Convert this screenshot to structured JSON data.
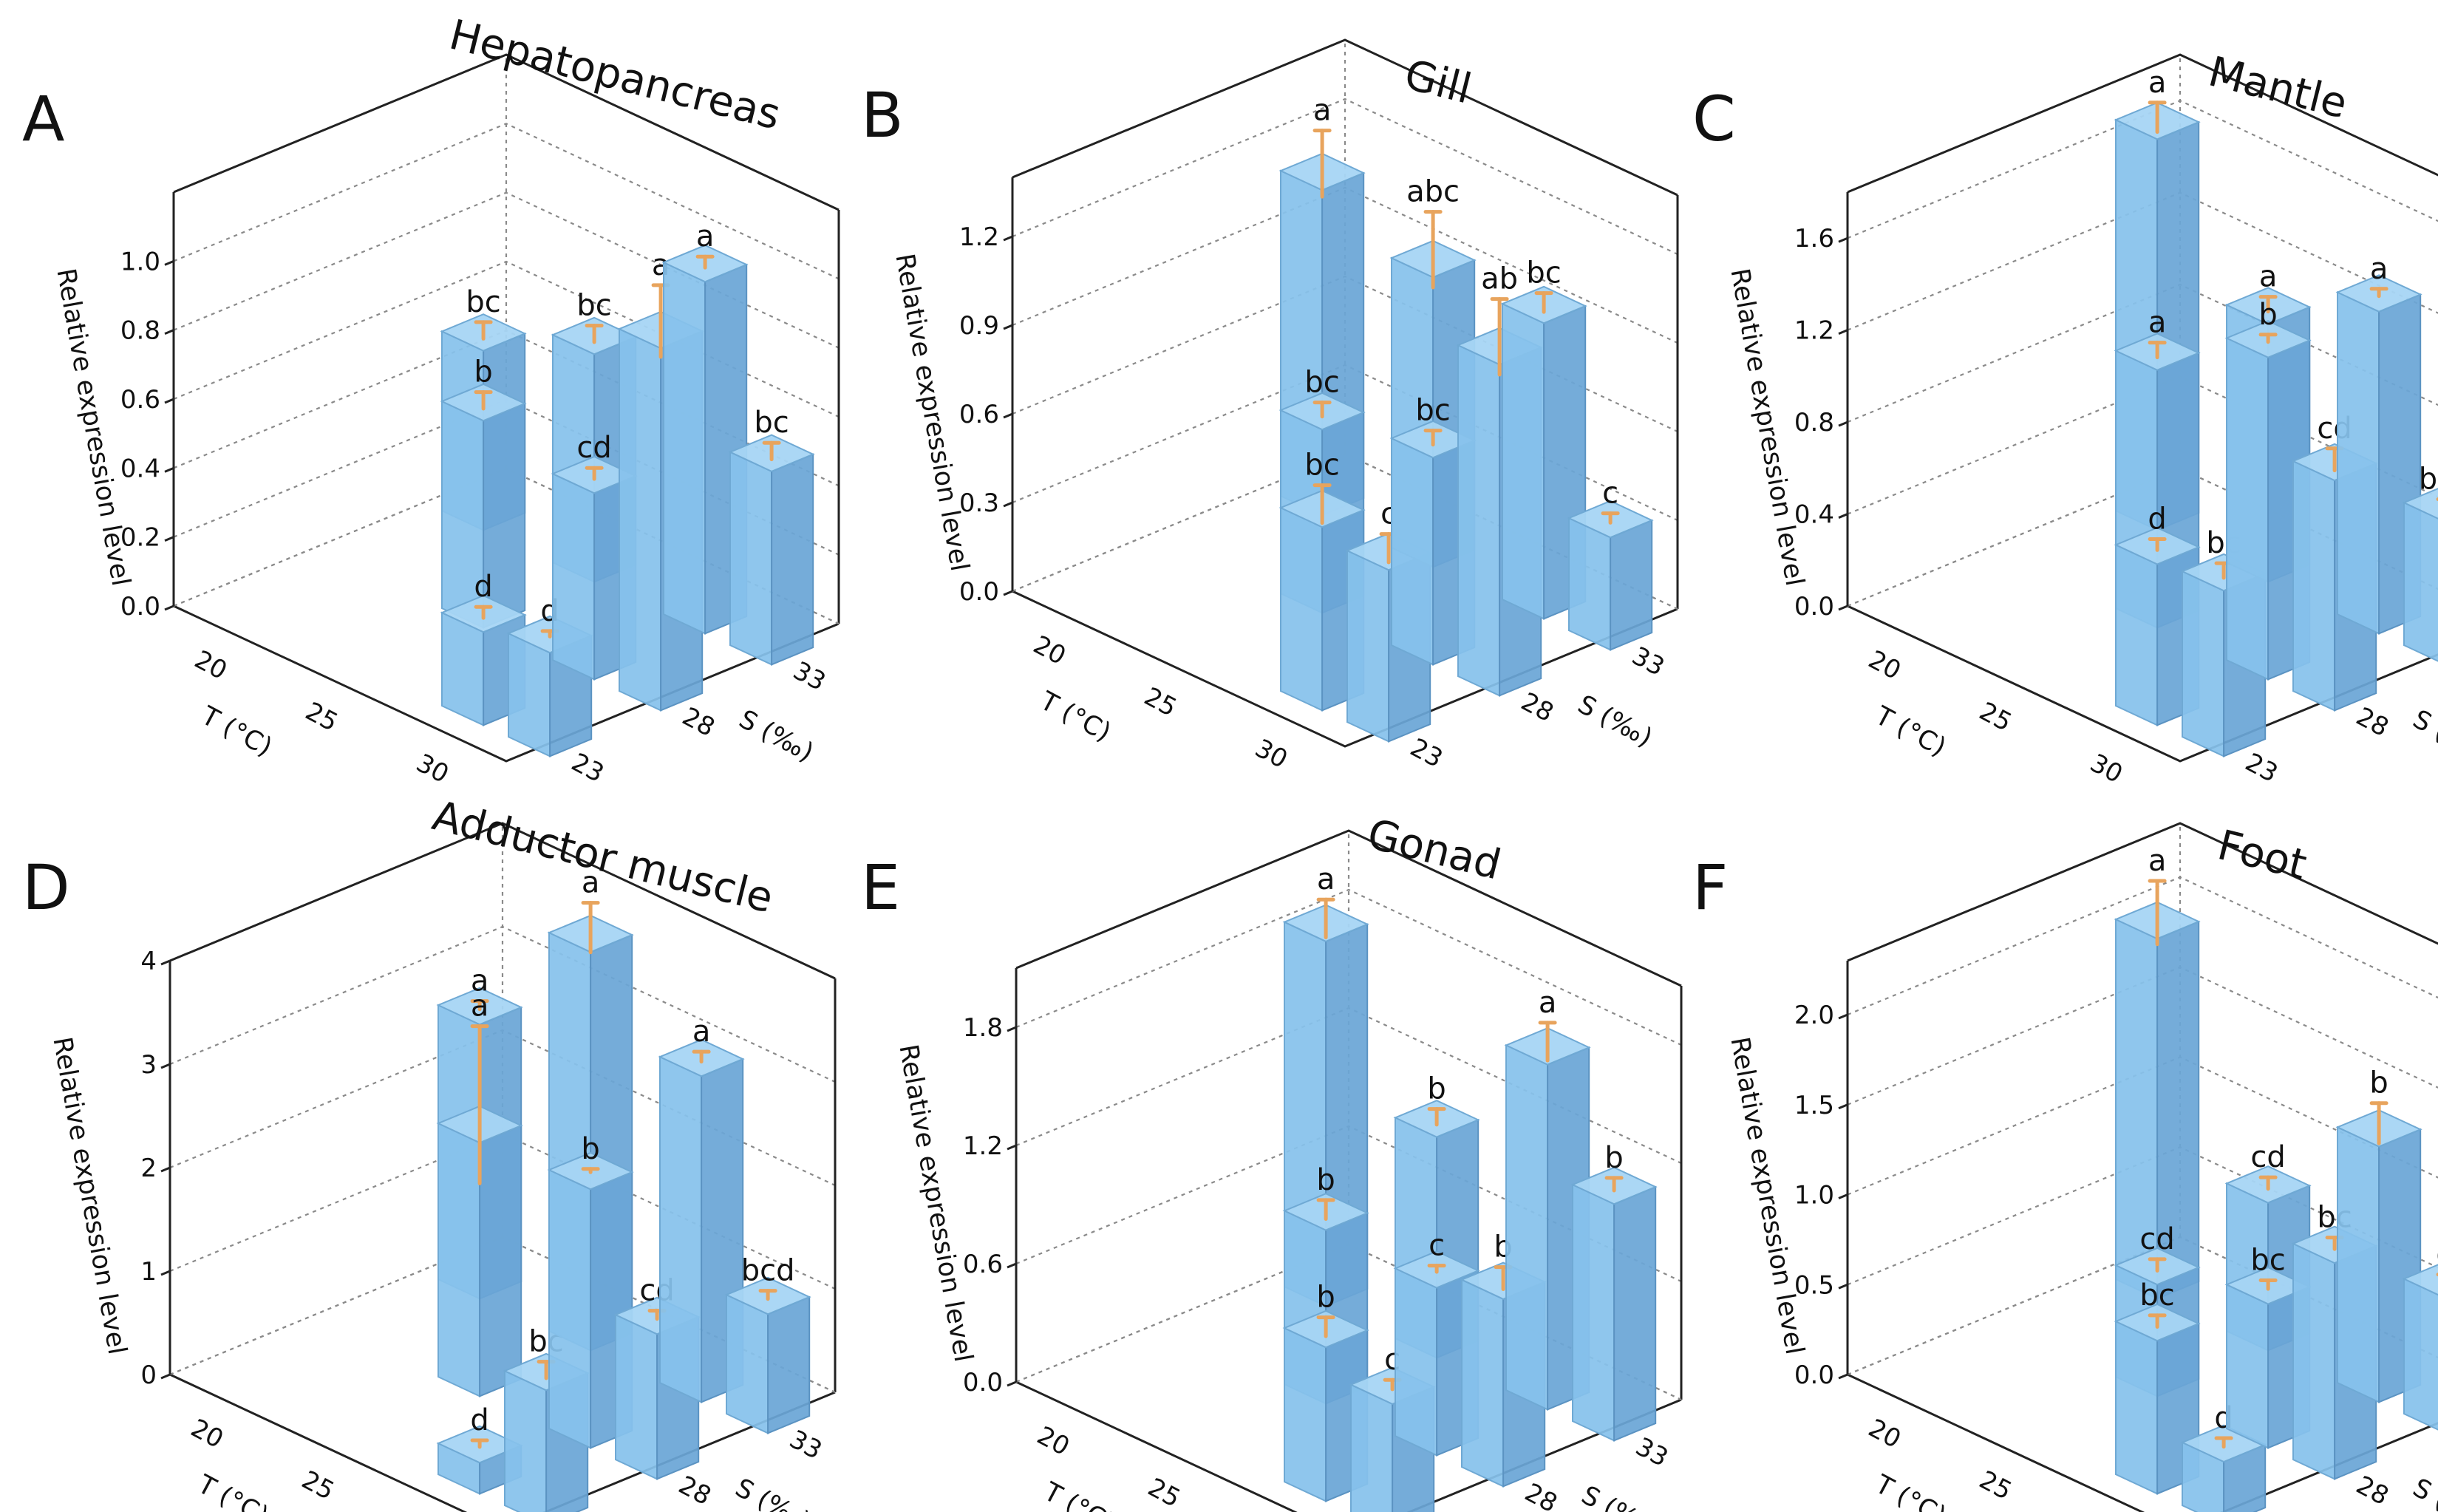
{
  "figure": {
    "panel_count": 6
  },
  "chart_data": [
    {
      "type": "bar3d",
      "panel": "A",
      "title": "Hepatopancreas",
      "ylabel": "Relative expression level",
      "xlabel": "T (°C)",
      "zlabel": "S (‰)",
      "x_categories": [
        "20",
        "25",
        "30"
      ],
      "z_categories": [
        "23",
        "28",
        "33"
      ],
      "ylim": [
        0,
        1.2
      ],
      "yticks": [
        0.0,
        0.2,
        0.4,
        0.6,
        0.8,
        1.0
      ],
      "ytick_labels": [
        "0.0",
        "0.2",
        "0.4",
        "0.6",
        "0.8",
        "1.0"
      ],
      "bars": [
        {
          "T": "20",
          "S": "33",
          "value": 0.52,
          "error": 0.03,
          "label": "bc"
        },
        {
          "T": "25",
          "S": "28",
          "value": 0.6,
          "error": 0.03,
          "label": "b"
        },
        {
          "T": "25",
          "S": "33",
          "value": 0.66,
          "error": 0.03,
          "label": "bc"
        },
        {
          "T": "30",
          "S": "23",
          "value": 0.27,
          "error": 0.02,
          "label": "d"
        },
        {
          "T": "30",
          "S": "28",
          "value": 0.54,
          "error": 0.02,
          "label": "cd"
        },
        {
          "T": "30",
          "S": "33",
          "value": 1.02,
          "error": 0.02,
          "label": "a"
        },
        {
          "T": "35",
          "S": "23",
          "value": 0.3,
          "error": 0.01,
          "label": "d"
        },
        {
          "T": "35",
          "S": "28",
          "value": 1.05,
          "error": 0.13,
          "label": "a"
        },
        {
          "T": "35",
          "S": "33",
          "value": 0.56,
          "error": 0.03,
          "label": "bc"
        }
      ]
    },
    {
      "type": "bar3d",
      "panel": "B",
      "title": "Gill",
      "ylabel": "Relative expression level",
      "xlabel": "T (°C)",
      "zlabel": "S (‰)",
      "x_categories": [
        "20",
        "25",
        "30"
      ],
      "z_categories": [
        "23",
        "28",
        "33"
      ],
      "ylim": [
        0,
        1.4
      ],
      "yticks": [
        0.0,
        0.3,
        0.6,
        0.9,
        1.2
      ],
      "ytick_labels": [
        "0.0",
        "0.3",
        "0.6",
        "0.9",
        "1.2"
      ],
      "bars": [
        {
          "T": "20",
          "S": "33",
          "value": 1.1,
          "error": 0.14,
          "label": "a"
        },
        {
          "T": "25",
          "S": "28",
          "value": 0.62,
          "error": 0.03,
          "label": "bc"
        },
        {
          "T": "25",
          "S": "33",
          "value": 0.98,
          "error": 0.16,
          "label": "abc"
        },
        {
          "T": "30",
          "S": "23",
          "value": 0.62,
          "error": 0.08,
          "label": "bc"
        },
        {
          "T": "30",
          "S": "28",
          "value": 0.7,
          "error": 0.03,
          "label": "bc"
        },
        {
          "T": "30",
          "S": "33",
          "value": 1.0,
          "error": 0.04,
          "label": "bc"
        },
        {
          "T": "35",
          "S": "23",
          "value": 0.58,
          "error": 0.06,
          "label": "c"
        },
        {
          "T": "35",
          "S": "28",
          "value": 1.12,
          "error": 0.16,
          "label": "ab"
        },
        {
          "T": "35",
          "S": "33",
          "value": 0.38,
          "error": 0.02,
          "label": "c"
        }
      ]
    },
    {
      "type": "bar3d",
      "panel": "C",
      "title": "Mantle",
      "ylabel": "Relative expression level",
      "xlabel": "T (°C)",
      "zlabel": "S (‰)",
      "x_categories": [
        "20",
        "25",
        "30"
      ],
      "z_categories": [
        "23",
        "28",
        "33"
      ],
      "ylim": [
        0,
        1.8
      ],
      "yticks": [
        0.0,
        0.4,
        0.8,
        1.2,
        1.6
      ],
      "ytick_labels": [
        "0.0",
        "0.4",
        "0.8",
        "1.2",
        "1.6"
      ],
      "bars": [
        {
          "T": "20",
          "S": "33",
          "value": 1.7,
          "error": 0.08,
          "label": "a"
        },
        {
          "T": "25",
          "S": "28",
          "value": 1.12,
          "error": 0.04,
          "label": "a"
        },
        {
          "T": "25",
          "S": "33",
          "value": 1.12,
          "error": 0.04,
          "label": "a"
        },
        {
          "T": "30",
          "S": "23",
          "value": 0.7,
          "error": 0.03,
          "label": "d"
        },
        {
          "T": "30",
          "S": "28",
          "value": 1.4,
          "error": 0.02,
          "label": "b"
        },
        {
          "T": "30",
          "S": "33",
          "value": 1.4,
          "error": 0.02,
          "label": "a"
        },
        {
          "T": "35",
          "S": "23",
          "value": 0.72,
          "error": 0.04,
          "label": "bc"
        },
        {
          "T": "35",
          "S": "28",
          "value": 1.0,
          "error": 0.06,
          "label": "cd"
        },
        {
          "T": "35",
          "S": "33",
          "value": 0.62,
          "error": 0.02,
          "label": "bcd"
        }
      ]
    },
    {
      "type": "bar3d",
      "panel": "D",
      "title": "Adductor muscle",
      "ylabel": "Relative expression level",
      "xlabel": "T (°C)",
      "zlabel": "S (‰)",
      "x_categories": [
        "20",
        "25",
        "30"
      ],
      "z_categories": [
        "23",
        "28",
        "33"
      ],
      "ylim": [
        0,
        4
      ],
      "yticks": [
        0,
        1,
        2,
        3,
        4
      ],
      "ytick_labels": [
        "0",
        "1",
        "2",
        "3",
        "4"
      ],
      "bars": [
        {
          "T": "20",
          "S": "33",
          "value": 2.65,
          "error": 0.05,
          "label": "a"
        },
        {
          "T": "25",
          "S": "28",
          "value": 2.45,
          "error": 0.95,
          "label": "a"
        },
        {
          "T": "25",
          "S": "33",
          "value": 3.85,
          "error": 0.3,
          "label": "a"
        },
        {
          "T": "30",
          "S": "23",
          "value": 0.3,
          "error": 0.04,
          "label": "d"
        },
        {
          "T": "30",
          "S": "28",
          "value": 2.5,
          "error": 0.02,
          "label": "b"
        },
        {
          "T": "30",
          "S": "33",
          "value": 3.15,
          "error": 0.06,
          "label": "a"
        },
        {
          "T": "35",
          "S": "23",
          "value": 1.3,
          "error": 0.1,
          "label": "bc"
        },
        {
          "T": "35",
          "S": "28",
          "value": 1.4,
          "error": 0.05,
          "label": "cd"
        },
        {
          "T": "35",
          "S": "33",
          "value": 1.15,
          "error": 0.05,
          "label": "bcd"
        }
      ]
    },
    {
      "type": "bar3d",
      "panel": "E",
      "title": "Gonad",
      "ylabel": "Relative expression level",
      "xlabel": "T (°C)",
      "zlabel": "S (‰)",
      "x_categories": [
        "20",
        "25",
        "30"
      ],
      "z_categories": [
        "23",
        "28",
        "33"
      ],
      "ylim": [
        0,
        2.1
      ],
      "yticks": [
        0.0,
        0.6,
        1.2,
        1.8
      ],
      "ytick_labels": [
        "0.0",
        "0.6",
        "1.2",
        "1.8"
      ],
      "bars": [
        {
          "T": "20",
          "S": "33",
          "value": 1.85,
          "error": 0.12,
          "label": "a"
        },
        {
          "T": "25",
          "S": "28",
          "value": 0.88,
          "error": 0.06,
          "label": "b"
        },
        {
          "T": "25",
          "S": "33",
          "value": 1.12,
          "error": 0.05,
          "label": "b"
        },
        {
          "T": "30",
          "S": "23",
          "value": 0.78,
          "error": 0.06,
          "label": "b"
        },
        {
          "T": "30",
          "S": "28",
          "value": 0.85,
          "error": 0.02,
          "label": "c"
        },
        {
          "T": "30",
          "S": "33",
          "value": 1.75,
          "error": 0.12,
          "label": "a"
        },
        {
          "T": "35",
          "S": "23",
          "value": 0.65,
          "error": 0.03,
          "label": "c"
        },
        {
          "T": "35",
          "S": "28",
          "value": 0.95,
          "error": 0.07,
          "label": "b"
        },
        {
          "T": "35",
          "S": "33",
          "value": 1.2,
          "error": 0.04,
          "label": "b"
        }
      ]
    },
    {
      "type": "bar3d",
      "panel": "F",
      "title": "Foot",
      "ylabel": "Relative expression level",
      "xlabel": "T (°C)",
      "zlabel": "S (‰)",
      "x_categories": [
        "20",
        "25",
        "30"
      ],
      "z_categories": [
        "23",
        "28",
        "33"
      ],
      "ylim": [
        0,
        2.3
      ],
      "yticks": [
        0.0,
        0.5,
        1.0,
        1.5,
        2.0
      ],
      "ytick_labels": [
        "0.0",
        "0.5",
        "1.0",
        "1.5",
        "2.0"
      ],
      "bars": [
        {
          "T": "20",
          "S": "33",
          "value": 2.0,
          "error": 0.22,
          "label": "a"
        },
        {
          "T": "25",
          "S": "28",
          "value": 0.62,
          "error": 0.04,
          "label": "cd"
        },
        {
          "T": "25",
          "S": "33",
          "value": 0.82,
          "error": 0.04,
          "label": "cd"
        },
        {
          "T": "30",
          "S": "23",
          "value": 0.85,
          "error": 0.04,
          "label": "bc"
        },
        {
          "T": "30",
          "S": "28",
          "value": 0.8,
          "error": 0.03,
          "label": "bc"
        },
        {
          "T": "30",
          "S": "33",
          "value": 1.42,
          "error": 0.14,
          "label": "b"
        },
        {
          "T": "35",
          "S": "23",
          "value": 0.35,
          "error": 0.03,
          "label": "d"
        },
        {
          "T": "35",
          "S": "28",
          "value": 1.2,
          "error": 0.04,
          "label": "bc"
        },
        {
          "T": "35",
          "S": "33",
          "value": 0.75,
          "error": 0.03,
          "label": "d"
        }
      ]
    }
  ]
}
